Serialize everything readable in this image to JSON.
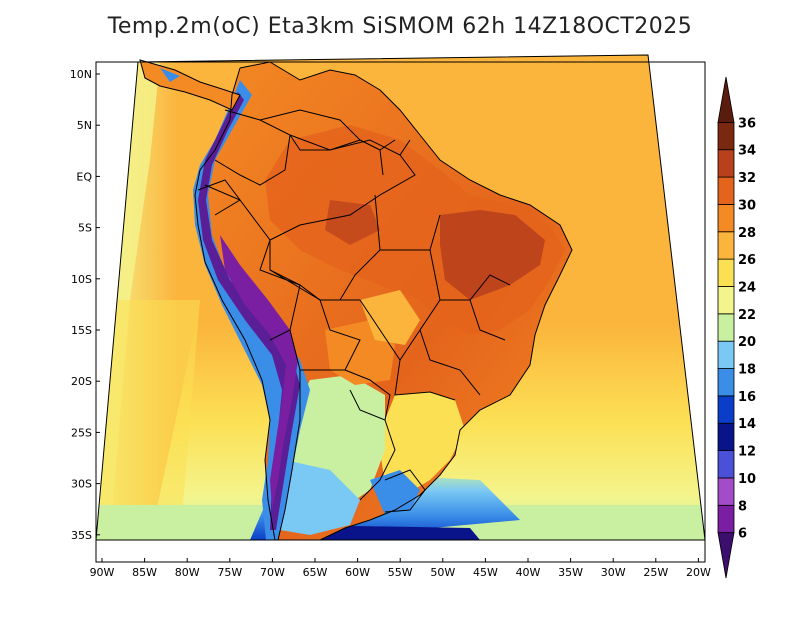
{
  "title": "Temp.2m(oC) Eta3km SiSMOM 62h 14Z18OCT2025",
  "map": {
    "variable": "Temperature at 2 m",
    "units": "oC",
    "lat_labels": [
      "10N",
      "5N",
      "EQ",
      "5S",
      "10S",
      "15S",
      "20S",
      "25S",
      "30S",
      "35S"
    ],
    "lon_labels": [
      "90W",
      "85W",
      "80W",
      "75W",
      "70W",
      "65W",
      "60W",
      "55W",
      "50W",
      "45W",
      "40W",
      "35W",
      "30W",
      "25W",
      "20W"
    ]
  },
  "colorbar": {
    "levels": [
      "6",
      "8",
      "10",
      "12",
      "14",
      "16",
      "18",
      "20",
      "22",
      "24",
      "26",
      "28",
      "30",
      "32",
      "34",
      "36"
    ],
    "colors": [
      "#3c0f6e",
      "#7a1fa2",
      "#a24cc8",
      "#4a50d8",
      "#0a148a",
      "#0a3ec8",
      "#3a8ee8",
      "#7ac8f4",
      "#c8f0a0",
      "#f4f48c",
      "#fce054",
      "#fbb43c",
      "#f48a24",
      "#e4641c",
      "#b8401c",
      "#7a2810",
      "#5a1c0c"
    ],
    "label_size": "cb-label"
  },
  "palette": {
    "ocean_warm": "#fbb43c",
    "ocean_mild": "#fce054",
    "ocean_cool": "#f4f48c",
    "land_hot": "#f48a24",
    "land_very_hot": "#e4641c",
    "andes_cold": "#5a1f96",
    "border": "#000000"
  }
}
